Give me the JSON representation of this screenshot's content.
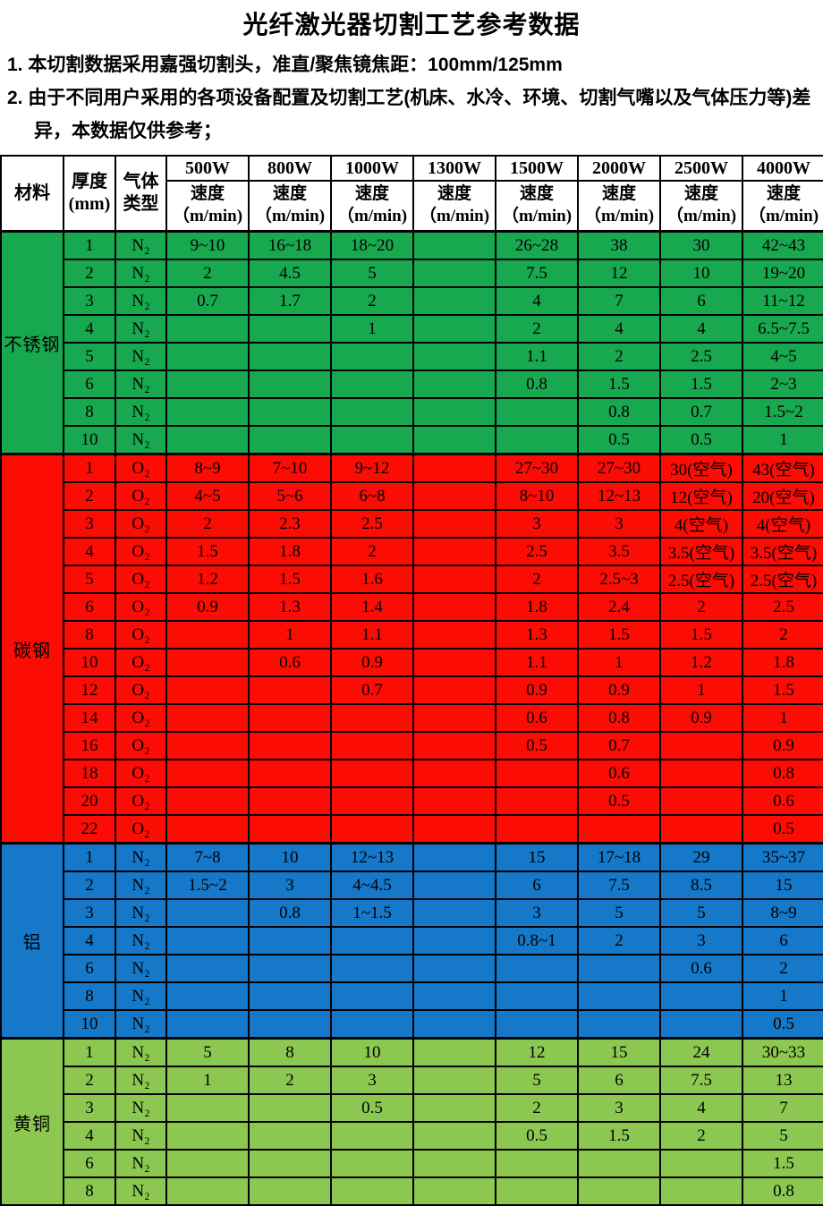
{
  "title": "光纤激光器切割工艺参考数据",
  "notes": [
    "1. 本切割数据采用嘉强切割头，准直/聚焦镜焦距：100mm/125mm",
    "2. 由于不同用户采用的各项设备配置及切割工艺(机床、水冷、环境、切割气嘴以及气体压力等)差异，本数据仅供参考；"
  ],
  "chart_data": {
    "type": "table",
    "title": "光纤激光器切割工艺参考数据",
    "corner_headers": {
      "material": "材料",
      "thickness": "厚度\n(mm)",
      "gas": "气体\n类型"
    },
    "power_columns": [
      "500W",
      "800W",
      "1000W",
      "1300W",
      "1500W",
      "2000W",
      "2500W",
      "4000W"
    ],
    "speed_label": "速度\n（m/min)",
    "colors": {
      "border": "#000000",
      "stainless": "#18A850",
      "carbon": "#FB0D06",
      "aluminum": "#1578C8",
      "brass": "#8CC751"
    },
    "sections": [
      {
        "material": "不锈钢",
        "gas": "N₂",
        "color": "#18A850",
        "rows": [
          {
            "thickness": "1",
            "values": [
              "9~10",
              "16~18",
              "18~20",
              "",
              "26~28",
              "38",
              "30",
              "42~43"
            ]
          },
          {
            "thickness": "2",
            "values": [
              "2",
              "4.5",
              "5",
              "",
              "7.5",
              "12",
              "10",
              "19~20"
            ]
          },
          {
            "thickness": "3",
            "values": [
              "0.7",
              "1.7",
              "2",
              "",
              "4",
              "7",
              "6",
              "11~12"
            ]
          },
          {
            "thickness": "4",
            "values": [
              "",
              "",
              "1",
              "",
              "2",
              "4",
              "4",
              "6.5~7.5"
            ]
          },
          {
            "thickness": "5",
            "values": [
              "",
              "",
              "",
              "",
              "1.1",
              "2",
              "2.5",
              "4~5"
            ]
          },
          {
            "thickness": "6",
            "values": [
              "",
              "",
              "",
              "",
              "0.8",
              "1.5",
              "1.5",
              "2~3"
            ]
          },
          {
            "thickness": "8",
            "values": [
              "",
              "",
              "",
              "",
              "",
              "0.8",
              "0.7",
              "1.5~2"
            ]
          },
          {
            "thickness": "10",
            "values": [
              "",
              "",
              "",
              "",
              "",
              "0.5",
              "0.5",
              "1"
            ]
          }
        ]
      },
      {
        "material": "碳钢",
        "gas": "O₂",
        "color": "#FB0D06",
        "rows": [
          {
            "thickness": "1",
            "values": [
              "8~9",
              "7~10",
              "9~12",
              "",
              "27~30",
              "27~30",
              "30(空气)",
              "43(空气)"
            ]
          },
          {
            "thickness": "2",
            "values": [
              "4~5",
              "5~6",
              "6~8",
              "",
              "8~10",
              "12~13",
              "12(空气)",
              "20(空气)"
            ]
          },
          {
            "thickness": "3",
            "values": [
              "2",
              "2.3",
              "2.5",
              "",
              "3",
              "3",
              "4(空气)",
              "4(空气)"
            ]
          },
          {
            "thickness": "4",
            "values": [
              "1.5",
              "1.8",
              "2",
              "",
              "2.5",
              "3.5",
              "3.5(空气)",
              "3.5(空气)"
            ]
          },
          {
            "thickness": "5",
            "values": [
              "1.2",
              "1.5",
              "1.6",
              "",
              "2",
              "2.5~3",
              "2.5(空气)",
              "2.5(空气)"
            ]
          },
          {
            "thickness": "6",
            "values": [
              "0.9",
              "1.3",
              "1.4",
              "",
              "1.8",
              "2.4",
              "2",
              "2.5"
            ]
          },
          {
            "thickness": "8",
            "values": [
              "",
              "1",
              "1.1",
              "",
              "1.3",
              "1.5",
              "1.5",
              "2"
            ]
          },
          {
            "thickness": "10",
            "values": [
              "",
              "0.6",
              "0.9",
              "",
              "1.1",
              "1",
              "1.2",
              "1.8"
            ]
          },
          {
            "thickness": "12",
            "values": [
              "",
              "",
              "0.7",
              "",
              "0.9",
              "0.9",
              "1",
              "1.5"
            ]
          },
          {
            "thickness": "14",
            "values": [
              "",
              "",
              "",
              "",
              "0.6",
              "0.8",
              "0.9",
              "1"
            ]
          },
          {
            "thickness": "16",
            "values": [
              "",
              "",
              "",
              "",
              "0.5",
              "0.7",
              "",
              "0.9"
            ]
          },
          {
            "thickness": "18",
            "values": [
              "",
              "",
              "",
              "",
              "",
              "0.6",
              "",
              "0.8"
            ]
          },
          {
            "thickness": "20",
            "values": [
              "",
              "",
              "",
              "",
              "",
              "0.5",
              "",
              "0.6"
            ]
          },
          {
            "thickness": "22",
            "values": [
              "",
              "",
              "",
              "",
              "",
              "",
              "",
              "0.5"
            ]
          }
        ]
      },
      {
        "material": "铝",
        "gas": "N₂",
        "color": "#1578C8",
        "rows": [
          {
            "thickness": "1",
            "values": [
              "7~8",
              "10",
              "12~13",
              "",
              "15",
              "17~18",
              "29",
              "35~37"
            ]
          },
          {
            "thickness": "2",
            "values": [
              "1.5~2",
              "3",
              "4~4.5",
              "",
              "6",
              "7.5",
              "8.5",
              "15"
            ]
          },
          {
            "thickness": "3",
            "values": [
              "",
              "0.8",
              "1~1.5",
              "",
              "3",
              "5",
              "5",
              "8~9"
            ]
          },
          {
            "thickness": "4",
            "values": [
              "",
              "",
              "",
              "",
              "0.8~1",
              "2",
              "3",
              "6"
            ]
          },
          {
            "thickness": "6",
            "values": [
              "",
              "",
              "",
              "",
              "",
              "",
              "0.6",
              "2"
            ]
          },
          {
            "thickness": "8",
            "values": [
              "",
              "",
              "",
              "",
              "",
              "",
              "",
              "1"
            ]
          },
          {
            "thickness": "10",
            "values": [
              "",
              "",
              "",
              "",
              "",
              "",
              "",
              "0.5"
            ]
          }
        ]
      },
      {
        "material": "黄铜",
        "gas": "N₂",
        "color": "#8CC751",
        "rows": [
          {
            "thickness": "1",
            "values": [
              "5",
              "8",
              "10",
              "",
              "12",
              "15",
              "24",
              "30~33"
            ]
          },
          {
            "thickness": "2",
            "values": [
              "1",
              "2",
              "3",
              "",
              "5",
              "6",
              "7.5",
              "13"
            ]
          },
          {
            "thickness": "3",
            "values": [
              "",
              "",
              "0.5",
              "",
              "2",
              "3",
              "4",
              "7"
            ]
          },
          {
            "thickness": "4",
            "values": [
              "",
              "",
              "",
              "",
              "0.5",
              "1.5",
              "2",
              "5"
            ]
          },
          {
            "thickness": "6",
            "values": [
              "",
              "",
              "",
              "",
              "",
              "",
              "",
              "1.5"
            ]
          },
          {
            "thickness": "8",
            "values": [
              "",
              "",
              "",
              "",
              "",
              "",
              "",
              "0.8"
            ]
          }
        ]
      }
    ]
  }
}
